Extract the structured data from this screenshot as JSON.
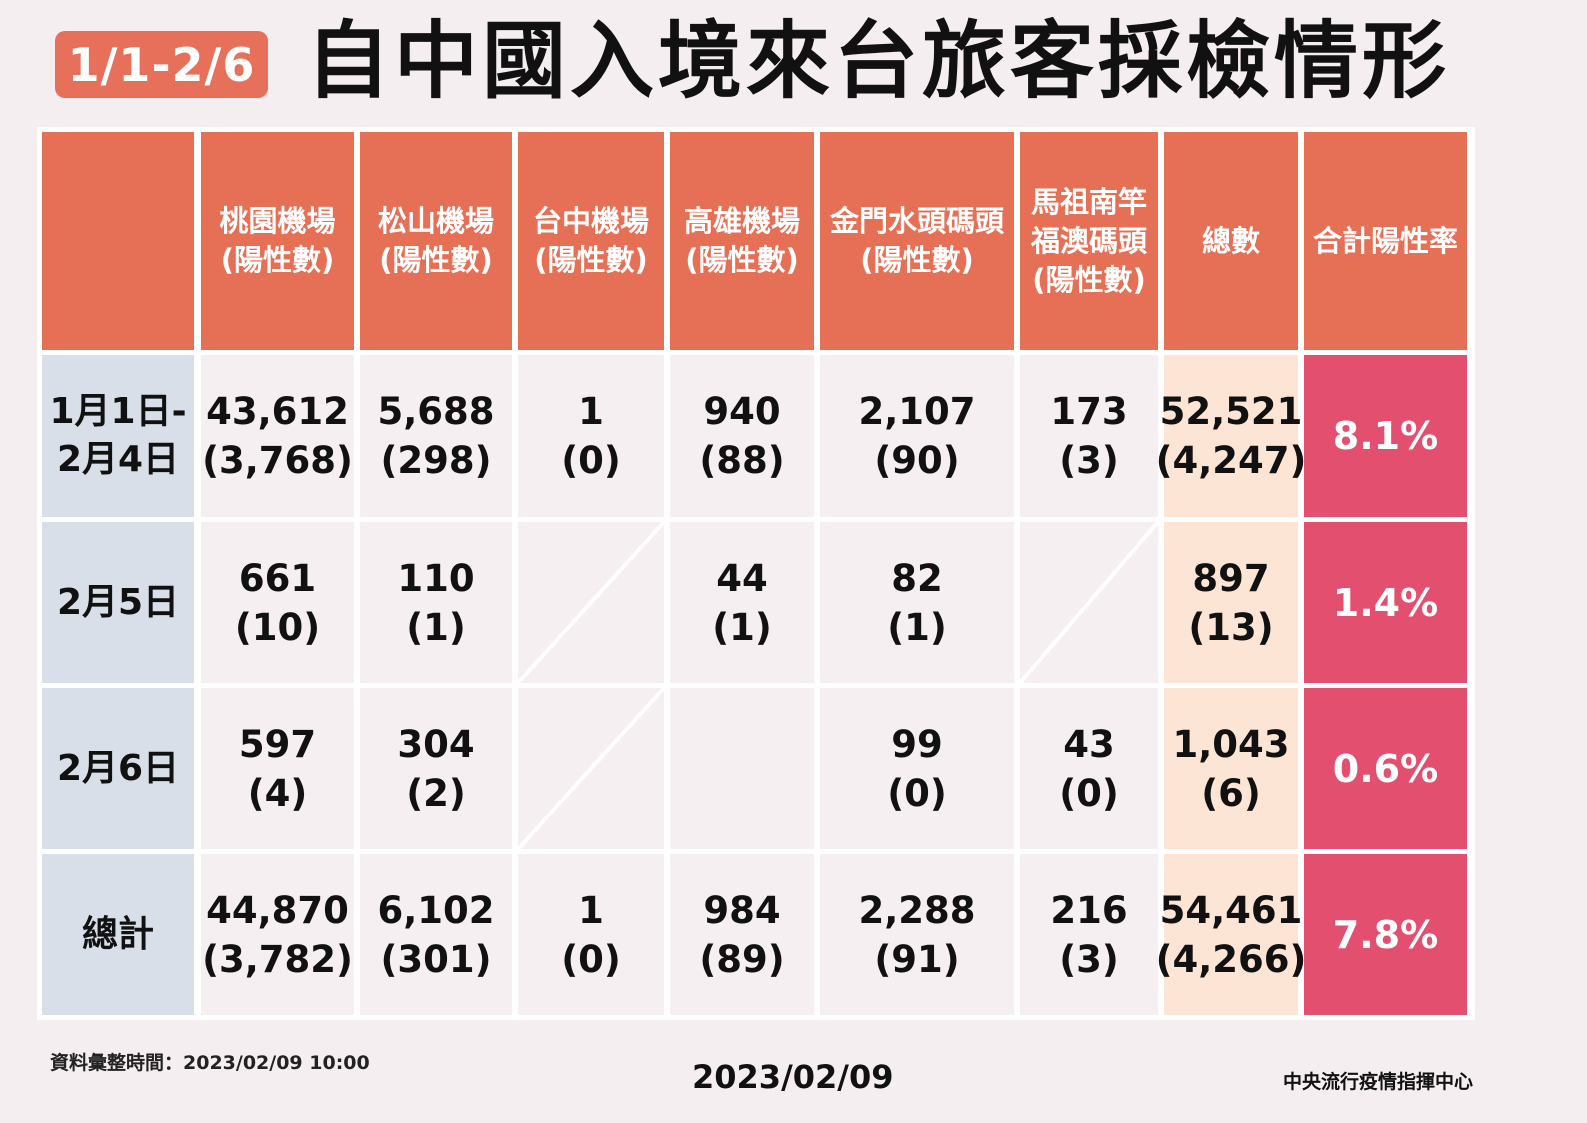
{
  "badge": "1/1-2/6",
  "title": "自中國入境來台旅客採檢情形",
  "chart_data": {
    "type": "table",
    "columns": [
      {
        "line1": "",
        "line2": "",
        "line3": ""
      },
      {
        "line1": "桃園機場",
        "line2": "(陽性數)",
        "line3": ""
      },
      {
        "line1": "松山機場",
        "line2": "(陽性數)",
        "line3": ""
      },
      {
        "line1": "台中機場",
        "line2": "(陽性數)",
        "line3": ""
      },
      {
        "line1": "高雄機場",
        "line2": "(陽性數)",
        "line3": ""
      },
      {
        "line1": "金門水頭碼頭",
        "line2": "(陽性數)",
        "line3": ""
      },
      {
        "line1": "馬祖南竿",
        "line2": "福澳碼頭",
        "line3": "(陽性數)"
      },
      {
        "line1": "總數",
        "line2": "",
        "line3": ""
      },
      {
        "line1": "合計陽性率",
        "line2": "",
        "line3": ""
      }
    ],
    "rows": [
      {
        "label1": "1月1日-",
        "label2": "2月4日",
        "cells": [
          {
            "value": "43,612",
            "positive": "(3,768)"
          },
          {
            "value": "5,688",
            "positive": "(298)"
          },
          {
            "value": "1",
            "positive": "(0)"
          },
          {
            "value": "940",
            "positive": "(88)"
          },
          {
            "value": "2,107",
            "positive": "(90)"
          },
          {
            "value": "173",
            "positive": "(3)"
          },
          {
            "value": "52,521",
            "positive": "(4,247)"
          }
        ],
        "rate": "8.1%"
      },
      {
        "label1": "2月5日",
        "label2": "",
        "cells": [
          {
            "value": "661",
            "positive": "(10)"
          },
          {
            "value": "110",
            "positive": "(1)"
          },
          {
            "value": "",
            "positive": "",
            "slash": true
          },
          {
            "value": "44",
            "positive": "(1)"
          },
          {
            "value": "82",
            "positive": "(1)"
          },
          {
            "value": "",
            "positive": "",
            "slash": true
          },
          {
            "value": "897",
            "positive": "(13)"
          }
        ],
        "rate": "1.4%"
      },
      {
        "label1": "2月6日",
        "label2": "",
        "cells": [
          {
            "value": "597",
            "positive": "(4)"
          },
          {
            "value": "304",
            "positive": "(2)"
          },
          {
            "value": "",
            "positive": "",
            "slash": true
          },
          {
            "value": "",
            "positive": ""
          },
          {
            "value": "99",
            "positive": "(0)"
          },
          {
            "value": "43",
            "positive": "(0)"
          },
          {
            "value": "1,043",
            "positive": "(6)"
          }
        ],
        "rate": "0.6%"
      },
      {
        "label1": "總計",
        "label2": "",
        "cells": [
          {
            "value": "44,870",
            "positive": "(3,782)"
          },
          {
            "value": "6,102",
            "positive": "(301)"
          },
          {
            "value": "1",
            "positive": "(0)"
          },
          {
            "value": "984",
            "positive": "(89)"
          },
          {
            "value": "2,288",
            "positive": "(91)"
          },
          {
            "value": "216",
            "positive": "(3)"
          },
          {
            "value": "54,461",
            "positive": "(4,266)"
          }
        ],
        "rate": "7.8%"
      }
    ]
  },
  "footer": {
    "data_time": "資料彙整時間：2023/02/09  10:00",
    "date": "2023/02/09",
    "agency": "中央流行疫情指揮中心"
  },
  "colors": {
    "header": "#e67055",
    "row_label": "#d9dfe8",
    "body": "#f5eff1",
    "total": "#fde5d6",
    "rate": "#e34f6e",
    "badge": "#e6705a"
  }
}
